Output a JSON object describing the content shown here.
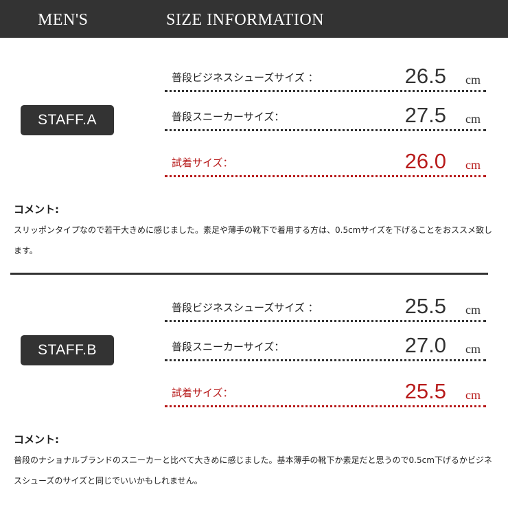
{
  "header": {
    "left": "MEN'S",
    "title": "SIZE INFORMATION"
  },
  "colors": {
    "header_bg": "#333333",
    "accent_red": "#b81c1c"
  },
  "staff": [
    {
      "name": "STAFF.A",
      "rows": [
        {
          "label": "普段ビジネスシューズサイズ ：",
          "value": "26.5",
          "unit": "cm"
        },
        {
          "label": "普段スニーカーサイズ：",
          "value": "27.5",
          "unit": "cm"
        },
        {
          "label": "試着サイズ：",
          "value": "26.0",
          "unit": "cm"
        }
      ],
      "comment_title": "コメント:",
      "comment": "スリッポンタイプなので若干大きめに感じました。素足や薄手の靴下で着用する方は、0.5cmサイズを下げることをおススメ致します。"
    },
    {
      "name": "STAFF.B",
      "rows": [
        {
          "label": "普段ビジネスシューズサイズ ：",
          "value": "25.5",
          "unit": "cm"
        },
        {
          "label": "普段スニーカーサイズ：",
          "value": "27.0",
          "unit": "cm"
        },
        {
          "label": "試着サイズ：",
          "value": "25.5",
          "unit": "cm"
        }
      ],
      "comment_title": "コメント:",
      "comment": "普段のナショナルブランドのスニーカーと比べて大きめに感じました。基本薄手の靴下か素足だと思うので0.5cm下げるかビジネスシューズのサイズと同じでいいかもしれません。"
    }
  ]
}
